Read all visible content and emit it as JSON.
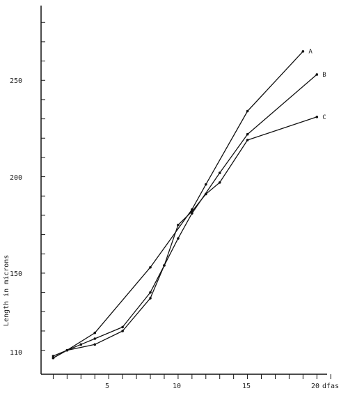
{
  "chart_data": {
    "type": "line",
    "title": "",
    "xlabel": "dfas",
    "ylabel": "Length in microns",
    "x_tick_labels": [
      "5",
      "10",
      "15",
      "20"
    ],
    "y_tick_labels": [
      "110",
      "150",
      "200",
      "250"
    ],
    "xlim": [
      0,
      21
    ],
    "ylim": [
      102,
      285
    ],
    "grid": false,
    "legend": "labels at line ends",
    "series": [
      {
        "name": "A",
        "x": [
          1,
          2,
          4,
          8,
          11,
          12,
          15,
          19
        ],
        "y": [
          107,
          110,
          119,
          153,
          183,
          196,
          234,
          265
        ]
      },
      {
        "name": "B",
        "x": [
          1,
          2,
          4,
          6,
          8,
          9,
          10,
          11,
          13,
          15,
          20
        ],
        "y": [
          106,
          110,
          113,
          120,
          137,
          154,
          168,
          181,
          202,
          222,
          253
        ]
      },
      {
        "name": "C",
        "x": [
          1,
          2,
          3,
          4,
          6,
          8,
          9,
          10,
          11,
          12,
          13,
          15,
          20
        ],
        "y": [
          106,
          110,
          113,
          116,
          122,
          140,
          154,
          175,
          182,
          191,
          197,
          219,
          231
        ]
      }
    ]
  }
}
